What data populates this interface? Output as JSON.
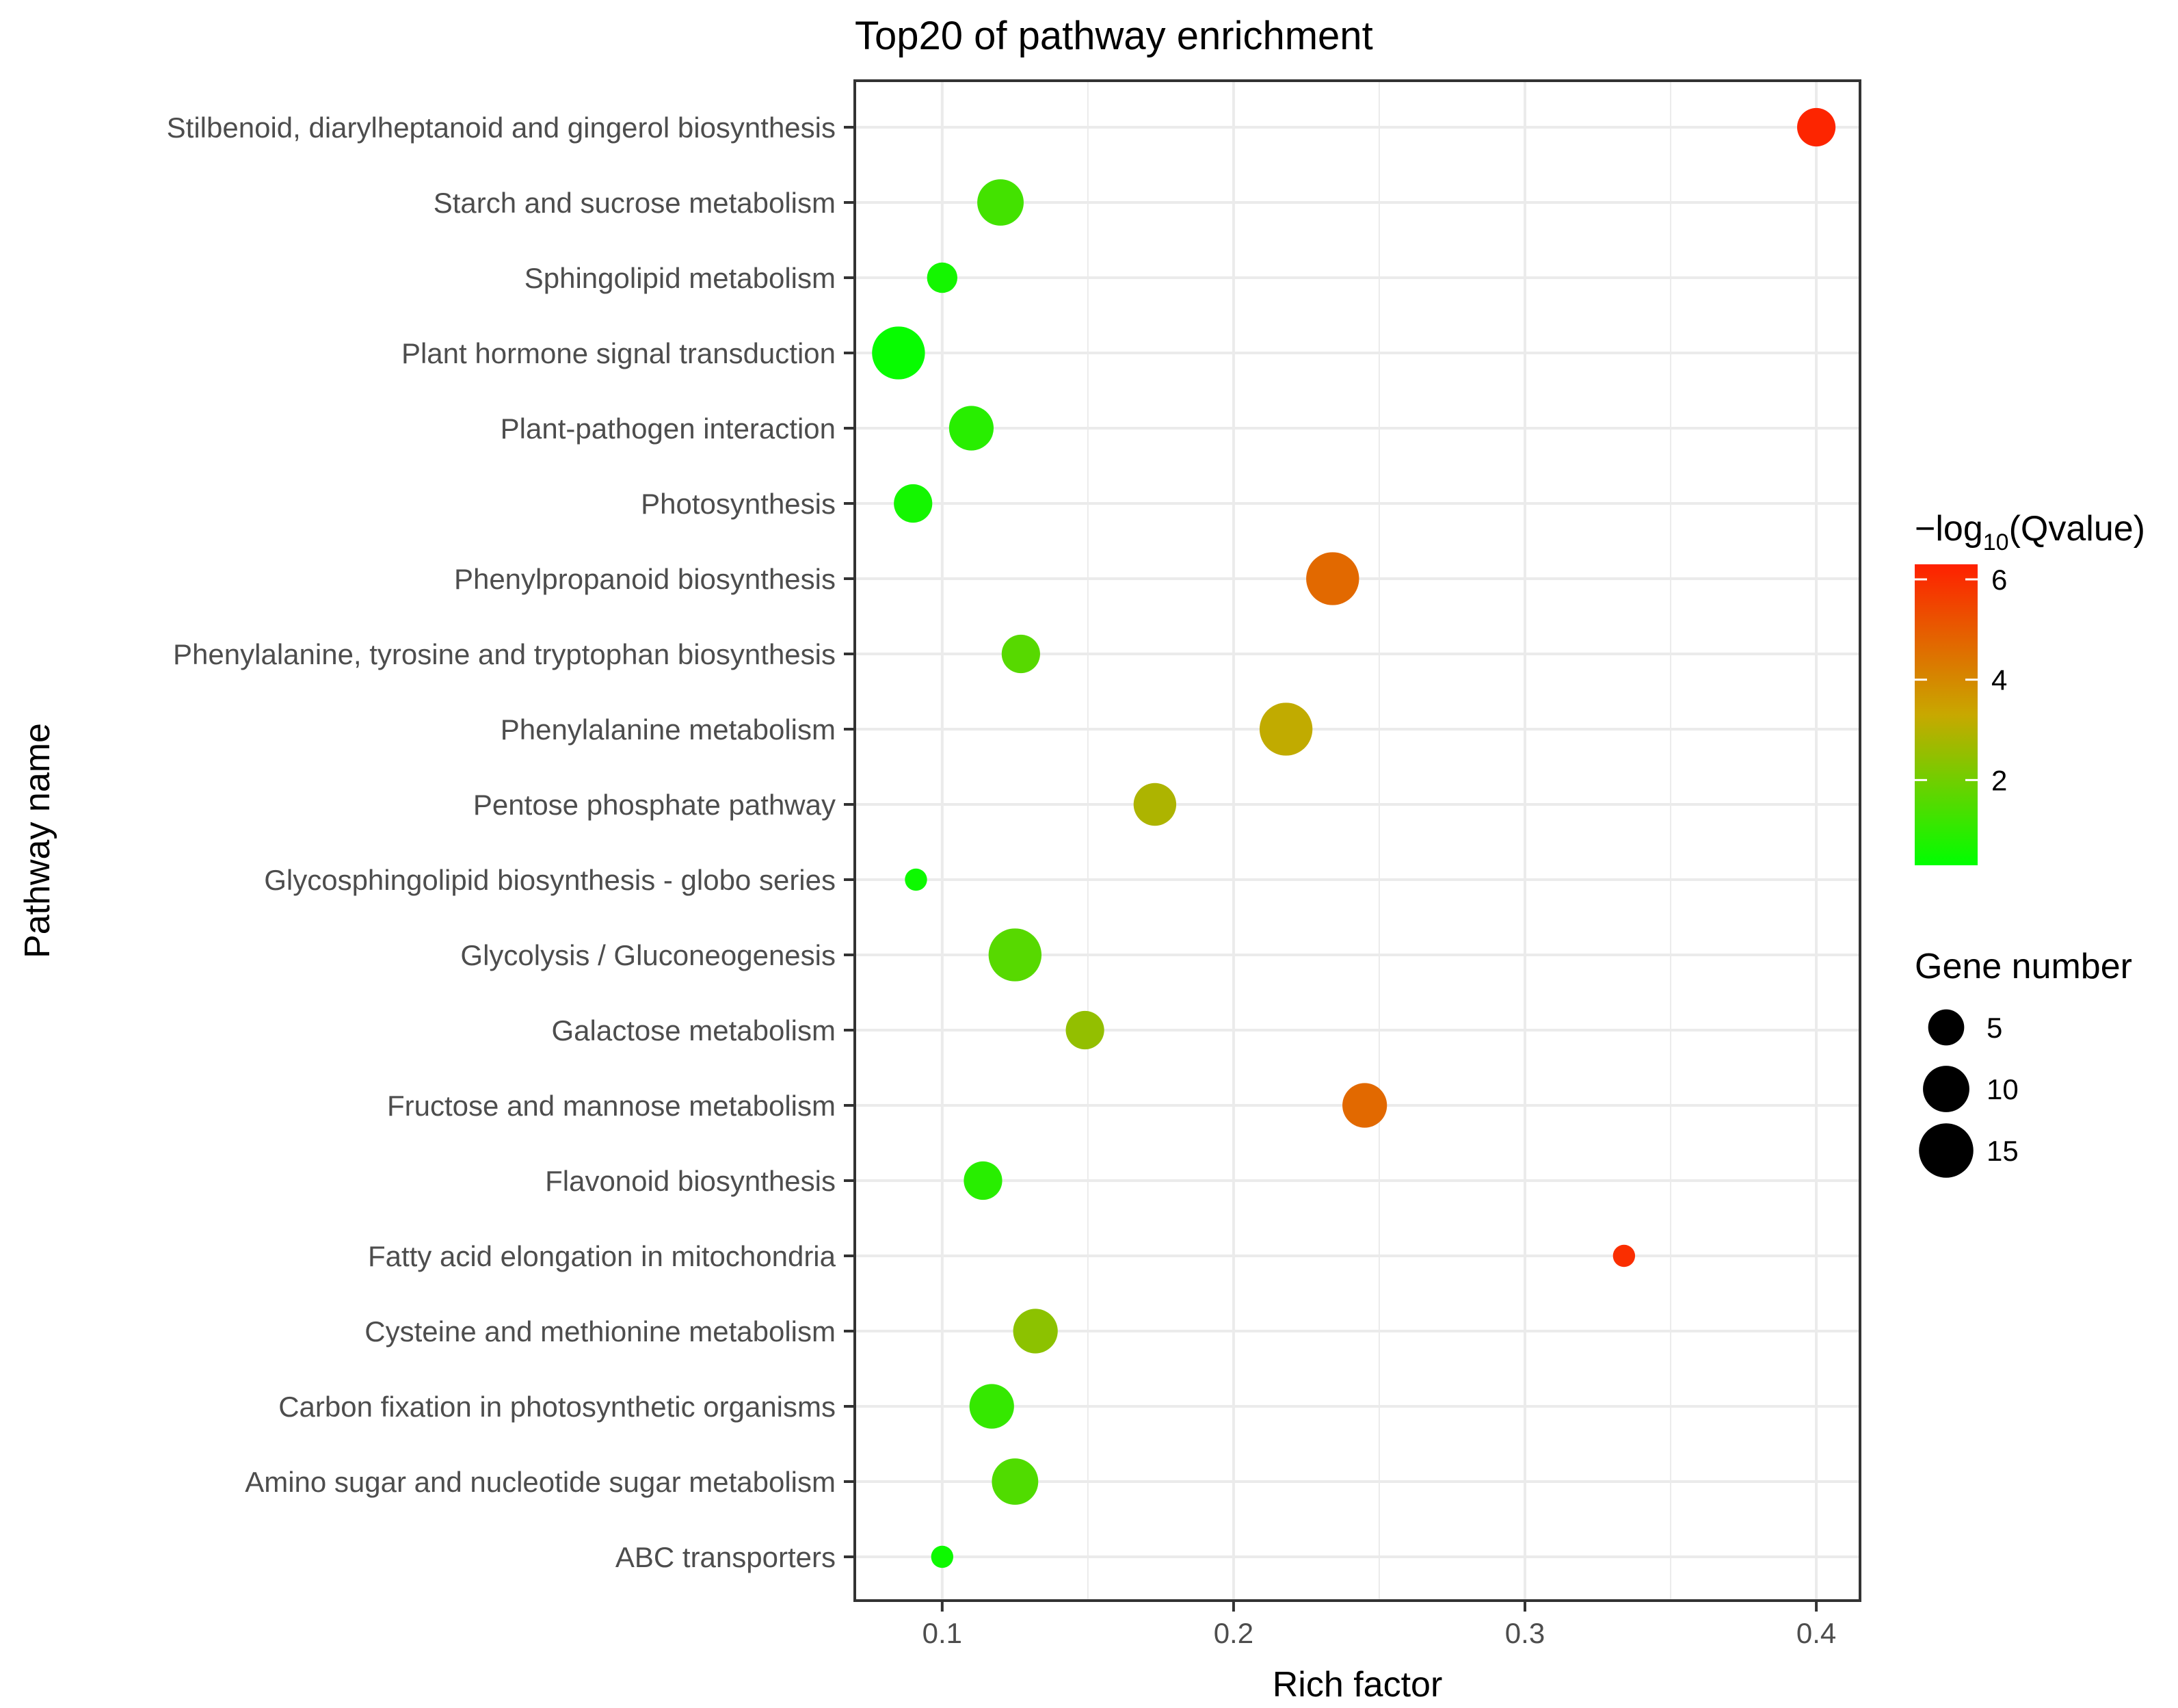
{
  "chart_data": {
    "type": "scatter",
    "title": "Top20 of pathway enrichment",
    "xlabel": "Rich factor",
    "ylabel": "Pathway name",
    "xlim": [
      0.07,
      0.415
    ],
    "x_ticks": [
      0.1,
      0.2,
      0.3,
      0.4
    ],
    "x_tick_labels": [
      "0.1",
      "0.2",
      "0.3",
      "0.4"
    ],
    "grid": true,
    "categories": [
      "Stilbenoid, diarylheptanoid and gingerol biosynthesis",
      "Starch and sucrose metabolism",
      "Sphingolipid metabolism",
      "Plant hormone signal transduction",
      "Plant-pathogen interaction",
      "Photosynthesis",
      "Phenylpropanoid biosynthesis",
      "Phenylalanine, tyrosine and tryptophan biosynthesis",
      "Phenylalanine metabolism",
      "Pentose phosphate pathway",
      "Glycosphingolipid biosynthesis - globo series",
      "Glycolysis / Gluconeogenesis",
      "Galactose metabolism",
      "Fructose and mannose metabolism",
      "Flavonoid biosynthesis",
      "Fatty acid elongation in mitochondria",
      "Cysteine and methionine metabolism",
      "Carbon fixation in photosynthetic organisms",
      "Amino sugar and nucleotide sugar metabolism",
      "ABC transporters"
    ],
    "rich_factor": [
      0.4,
      0.12,
      0.1,
      0.085,
      0.11,
      0.09,
      0.234,
      0.127,
      0.218,
      0.173,
      0.091,
      0.125,
      0.149,
      0.245,
      0.114,
      0.334,
      0.132,
      0.117,
      0.125,
      0.1
    ],
    "neg_log10_qvalue": [
      6.2,
      1.3,
      0.6,
      0.4,
      0.9,
      0.6,
      4.7,
      1.6,
      3.2,
      2.9,
      0.5,
      1.6,
      2.5,
      4.7,
      0.9,
      6.0,
      2.4,
      1.1,
      1.5,
      0.5
    ],
    "gene_number": [
      6,
      10,
      3,
      14,
      9,
      6,
      14,
      6,
      14,
      8,
      1,
      14,
      6,
      9,
      6,
      1,
      9,
      9,
      10,
      1
    ],
    "color_legend": {
      "title_prefix": "−log",
      "title_sub": "10",
      "title_suffix": "(Qvalue)",
      "ticks": [
        2,
        4,
        6
      ],
      "tick_labels": [
        "2",
        "4",
        "6"
      ],
      "range": [
        0.3,
        6.3
      ],
      "low_color": "#00ff00",
      "high_color": "#ff0000"
    },
    "size_legend": {
      "title": "Gene number",
      "values": [
        5,
        10,
        15
      ],
      "labels": [
        "5",
        "10",
        "15"
      ],
      "color": "#000000"
    },
    "panel_border_color": "#333333",
    "grid_color": "#ebebeb"
  }
}
